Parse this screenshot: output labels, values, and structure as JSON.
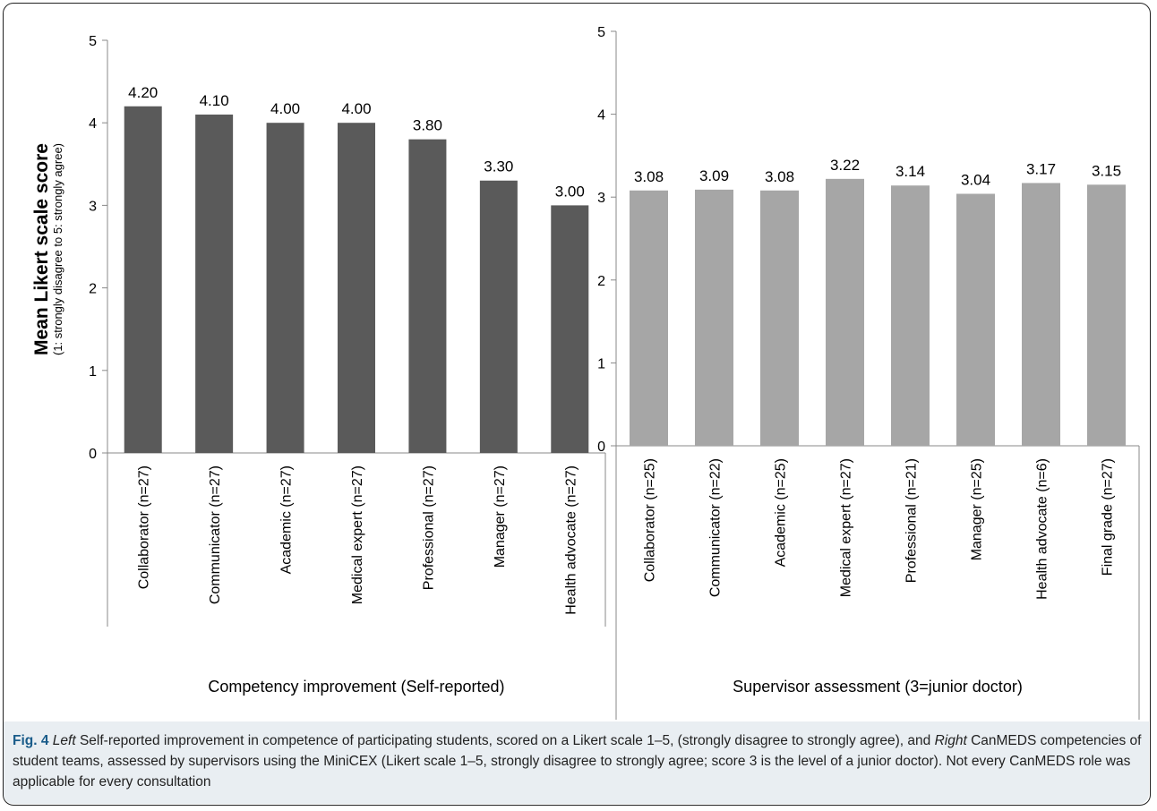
{
  "chart_data": [
    {
      "type": "bar",
      "xlabel": "Competency improvement (Self-reported)",
      "ylabel": "Mean Likert scale score",
      "ylabel_sub": "(1: strongly disagree to 5: strongly agree)",
      "ylim": [
        0,
        5
      ],
      "yticks": [
        "0",
        "1",
        "2",
        "3",
        "4",
        "5"
      ],
      "categories": [
        "Collaborator (n=27)",
        "Communicator (n=27)",
        "Academic  (n=27)",
        "Medical expert  (n=27)",
        "Professional  (n=27)",
        "Manager  (n=27)",
        "Health advocate  (n=27)"
      ],
      "values": [
        4.2,
        4.1,
        4.0,
        4.0,
        3.8,
        3.3,
        3.0
      ],
      "data_labels": [
        "4.20",
        "4.10",
        "4.00",
        "4.00",
        "3.80",
        "3.30",
        "3.00"
      ],
      "color": "#5a5a5a",
      "grid": false
    },
    {
      "type": "bar",
      "xlabel": "Supervisor assessment (3=junior doctor)",
      "ylim": [
        0,
        5
      ],
      "yticks": [
        "0",
        "1",
        "2",
        "3",
        "4",
        "5"
      ],
      "categories": [
        "Collaborator (n=25)",
        "Communicator (n=22)",
        "Academic (n=25)",
        "Medical expert (n=27)",
        "Professional (n=21)",
        "Manager (n=25)",
        "Health advocate (n=6)",
        "Final grade (n=27)"
      ],
      "values": [
        3.08,
        3.09,
        3.08,
        3.22,
        3.14,
        3.04,
        3.17,
        3.15
      ],
      "data_labels": [
        "3.08",
        "3.09",
        "3.08",
        "3.22",
        "3.14",
        "3.04",
        "3.17",
        "3.15"
      ],
      "color": "#a6a6a6",
      "grid": false
    }
  ],
  "caption": {
    "fig_label": "Fig. 4",
    "left_word": "Left",
    "part1": " Self-reported improvement in competence of participating students, scored on a Likert scale 1–5, (strongly disagree to strongly agree), and ",
    "right_word": "Right",
    "part2": " CanMEDS competencies of student teams, assessed by supervisors using the MiniCEX (Likert scale 1–5, strongly disagree to strongly agree; score 3 is the level of a junior doctor). Not every CanMEDS role was applicable for every consultation"
  }
}
